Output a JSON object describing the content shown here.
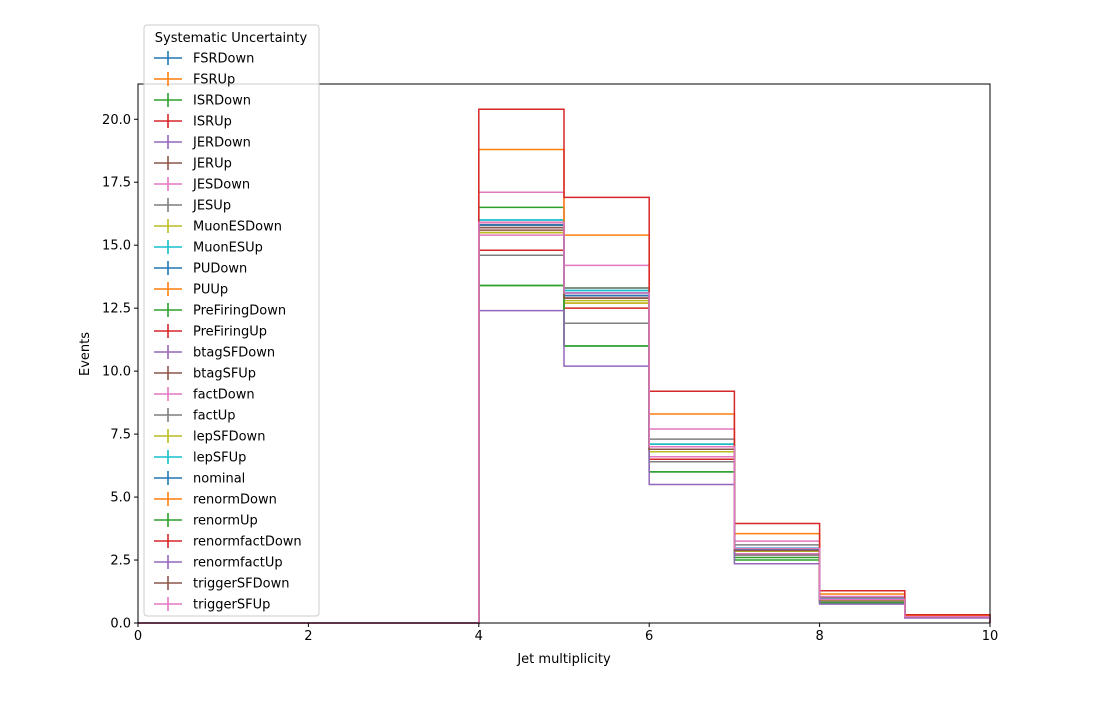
{
  "chart_data": {
    "type": "line",
    "drawstyle": "step",
    "xlabel": "Jet multiplicity",
    "ylabel": "Events",
    "xlim": [
      0,
      10
    ],
    "ylim": [
      0,
      21.4
    ],
    "xticks": [
      "0",
      "2",
      "4",
      "6",
      "8",
      "10"
    ],
    "yticks": [
      "0.0",
      "2.5",
      "5.0",
      "7.5",
      "10.0",
      "12.5",
      "15.0",
      "17.5",
      "20.0"
    ],
    "grid": false,
    "legend": {
      "title": "Systematic Uncertainty",
      "placement": "upper-left, above axes",
      "marker": "errorbar"
    },
    "bin_edges": [
      0,
      1,
      2,
      3,
      4,
      5,
      6,
      7,
      8,
      9,
      10
    ],
    "series": [
      {
        "name": "FSRDown",
        "color": "#1f77b4",
        "values": [
          0,
          0,
          0,
          0,
          15.8,
          13.1,
          7.0,
          2.95,
          0.95,
          0.25
        ]
      },
      {
        "name": "FSRUp",
        "color": "#ff7f0e",
        "values": [
          0,
          0,
          0,
          0,
          15.9,
          12.9,
          6.8,
          2.85,
          0.9,
          0.24
        ]
      },
      {
        "name": "ISRDown",
        "color": "#2ca02c",
        "values": [
          0,
          0,
          0,
          0,
          16.5,
          13.3,
          7.1,
          2.9,
          0.9,
          0.25
        ]
      },
      {
        "name": "ISRUp",
        "color": "#d62728",
        "values": [
          0,
          0,
          0,
          0,
          14.8,
          12.5,
          6.5,
          2.7,
          0.85,
          0.22
        ]
      },
      {
        "name": "JERDown",
        "color": "#9467bd",
        "values": [
          0,
          0,
          0,
          0,
          15.7,
          13.0,
          6.9,
          2.9,
          0.92,
          0.24
        ]
      },
      {
        "name": "JERUp",
        "color": "#8c564b",
        "values": [
          0,
          0,
          0,
          0,
          15.6,
          13.0,
          6.9,
          2.88,
          0.92,
          0.24
        ]
      },
      {
        "name": "JESDown",
        "color": "#e377c2",
        "values": [
          0,
          0,
          0,
          0,
          15.4,
          12.7,
          6.6,
          2.75,
          0.85,
          0.22
        ]
      },
      {
        "name": "JESUp",
        "color": "#7f7f7f",
        "values": [
          0,
          0,
          0,
          0,
          15.7,
          13.3,
          7.3,
          3.1,
          1.0,
          0.26
        ]
      },
      {
        "name": "MuonESDown",
        "color": "#bcbd22",
        "values": [
          0,
          0,
          0,
          0,
          15.5,
          12.8,
          6.9,
          2.85,
          0.9,
          0.24
        ]
      },
      {
        "name": "MuonESUp",
        "color": "#17becf",
        "values": [
          0,
          0,
          0,
          0,
          16.0,
          13.2,
          7.0,
          2.95,
          0.95,
          0.25
        ]
      },
      {
        "name": "PUDown",
        "color": "#1f77b4",
        "values": [
          0,
          0,
          0,
          0,
          15.8,
          13.1,
          7.0,
          2.95,
          0.95,
          0.25
        ]
      },
      {
        "name": "PUUp",
        "color": "#ff7f0e",
        "values": [
          0,
          0,
          0,
          0,
          15.5,
          12.7,
          6.8,
          2.9,
          0.92,
          0.24
        ]
      },
      {
        "name": "PreFiringDown",
        "color": "#2ca02c",
        "values": [
          0,
          0,
          0,
          0,
          13.4,
          11.0,
          6.0,
          2.6,
          0.8,
          0.21
        ]
      },
      {
        "name": "PreFiringUp",
        "color": "#d62728",
        "values": [
          0,
          0,
          0,
          0,
          15.9,
          12.9,
          6.9,
          2.9,
          0.92,
          0.24
        ]
      },
      {
        "name": "btagSFDown",
        "color": "#9467bd",
        "values": [
          0,
          0,
          0,
          0,
          15.9,
          13.0,
          6.9,
          2.9,
          0.92,
          0.24
        ]
      },
      {
        "name": "btagSFUp",
        "color": "#8c564b",
        "values": [
          0,
          0,
          0,
          0,
          15.8,
          12.9,
          6.9,
          2.88,
          0.91,
          0.24
        ]
      },
      {
        "name": "factDown",
        "color": "#e377c2",
        "values": [
          0,
          0,
          0,
          0,
          17.1,
          14.2,
          7.7,
          3.25,
          1.05,
          0.28
        ]
      },
      {
        "name": "factUp",
        "color": "#7f7f7f",
        "values": [
          0,
          0,
          0,
          0,
          14.6,
          11.9,
          6.4,
          2.7,
          0.85,
          0.22
        ]
      },
      {
        "name": "lepSFDown",
        "color": "#bcbd22",
        "values": [
          0,
          0,
          0,
          0,
          15.5,
          12.7,
          6.8,
          2.85,
          0.9,
          0.24
        ]
      },
      {
        "name": "lepSFUp",
        "color": "#17becf",
        "values": [
          0,
          0,
          0,
          0,
          16.0,
          13.2,
          7.1,
          2.98,
          0.95,
          0.25
        ]
      },
      {
        "name": "nominal",
        "color": "#1f77b4",
        "values": [
          0,
          0,
          0,
          0,
          15.8,
          13.0,
          7.0,
          2.92,
          0.93,
          0.25
        ]
      },
      {
        "name": "renormDown",
        "color": "#ff7f0e",
        "values": [
          0,
          0,
          0,
          0,
          18.8,
          15.4,
          8.3,
          3.55,
          1.15,
          0.3
        ]
      },
      {
        "name": "renormUp",
        "color": "#2ca02c",
        "values": [
          0,
          0,
          0,
          0,
          13.4,
          11.0,
          6.0,
          2.5,
          0.8,
          0.21
        ]
      },
      {
        "name": "renormfactDown",
        "color": "#d62728",
        "values": [
          0,
          0,
          0,
          0,
          20.4,
          16.9,
          9.2,
          3.95,
          1.28,
          0.33
        ]
      },
      {
        "name": "renormfactUp",
        "color": "#9467bd",
        "values": [
          0,
          0,
          0,
          0,
          12.4,
          10.2,
          5.5,
          2.35,
          0.75,
          0.2
        ]
      },
      {
        "name": "triggerSFDown",
        "color": "#8c564b",
        "values": [
          0,
          0,
          0,
          0,
          15.7,
          12.9,
          6.9,
          2.88,
          0.92,
          0.24
        ]
      },
      {
        "name": "triggerSFUp",
        "color": "#e377c2",
        "values": [
          0,
          0,
          0,
          0,
          15.9,
          13.1,
          7.0,
          2.96,
          0.94,
          0.25
        ]
      }
    ]
  }
}
